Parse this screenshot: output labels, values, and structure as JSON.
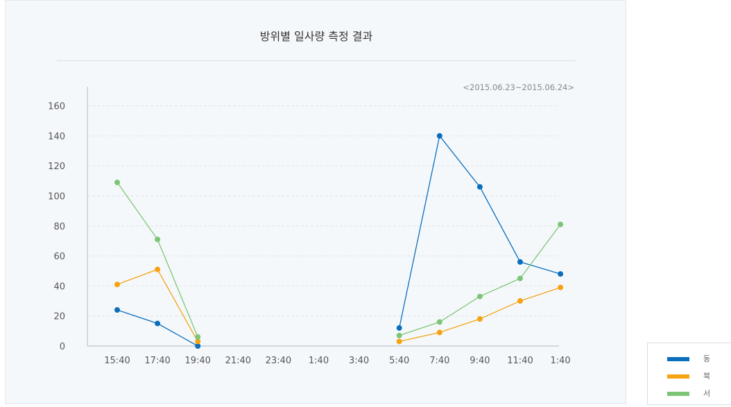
{
  "chart_data": {
    "type": "line",
    "title": "방위별 일사량 측정 결과",
    "subtitle": "<2015.06.23~2015.06.24>",
    "categories": [
      "15:40",
      "17:40",
      "19:40",
      "21:40",
      "23:40",
      "1:40",
      "3:40",
      "5:40",
      "7:40",
      "9:40",
      "11:40",
      "1:40"
    ],
    "ylim": [
      0,
      170
    ],
    "yticks": [
      0,
      20,
      40,
      60,
      80,
      100,
      120,
      140,
      160
    ],
    "grid": true,
    "legend_position": "bottom-right",
    "series": [
      {
        "name": "동",
        "color": "#0a6ebd",
        "values": [
          24,
          15,
          0,
          null,
          null,
          null,
          null,
          12,
          140,
          106,
          56,
          48
        ]
      },
      {
        "name": "북",
        "color": "#f5a312",
        "values": [
          41,
          51,
          3,
          null,
          null,
          null,
          null,
          3,
          9,
          18,
          30,
          39
        ]
      },
      {
        "name": "서",
        "color": "#7dc576",
        "values": [
          109,
          71,
          6,
          null,
          null,
          null,
          null,
          7,
          16,
          33,
          45,
          81
        ]
      }
    ]
  }
}
